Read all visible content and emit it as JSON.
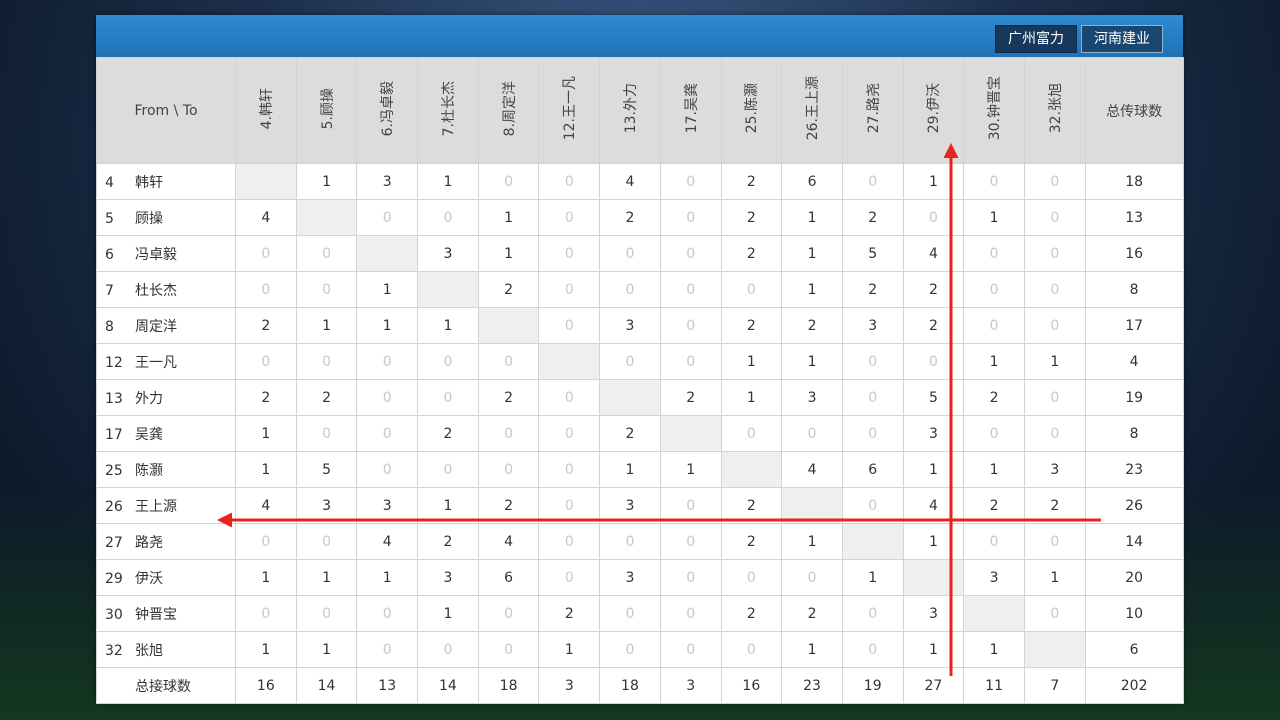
{
  "tabs": [
    "广州富力",
    "河南建业"
  ],
  "table": {
    "corner": "From \\ To",
    "columns": [
      "4.韩轩",
      "5.顾操",
      "6.冯卓毅",
      "7.杜长杰",
      "8.周定洋",
      "12.王一凡",
      "13.外力",
      "17.吴龚",
      "25.陈灏",
      "26.王上源",
      "27.路尧",
      "29.伊沃",
      "30.钟晋宝",
      "32.张旭"
    ],
    "total_header": "总传球数",
    "rows": [
      {
        "no": "4",
        "name": "韩轩",
        "cells": [
          null,
          1,
          3,
          1,
          0,
          0,
          4,
          0,
          2,
          6,
          0,
          1,
          0,
          0
        ],
        "total": 18
      },
      {
        "no": "5",
        "name": "顾操",
        "cells": [
          4,
          null,
          0,
          0,
          1,
          0,
          2,
          0,
          2,
          1,
          2,
          0,
          1,
          0
        ],
        "total": 13
      },
      {
        "no": "6",
        "name": "冯卓毅",
        "cells": [
          0,
          0,
          null,
          3,
          1,
          0,
          0,
          0,
          2,
          1,
          5,
          4,
          0,
          0
        ],
        "total": 16
      },
      {
        "no": "7",
        "name": "杜长杰",
        "cells": [
          0,
          0,
          1,
          null,
          2,
          0,
          0,
          0,
          0,
          1,
          2,
          2,
          0,
          0
        ],
        "total": 8
      },
      {
        "no": "8",
        "name": "周定洋",
        "cells": [
          2,
          1,
          1,
          1,
          null,
          0,
          3,
          0,
          2,
          2,
          3,
          2,
          0,
          0
        ],
        "total": 17
      },
      {
        "no": "12",
        "name": "王一凡",
        "cells": [
          0,
          0,
          0,
          0,
          0,
          null,
          0,
          0,
          1,
          1,
          0,
          0,
          1,
          1
        ],
        "total": 4
      },
      {
        "no": "13",
        "name": "外力",
        "cells": [
          2,
          2,
          0,
          0,
          2,
          0,
          null,
          2,
          1,
          3,
          0,
          5,
          2,
          0
        ],
        "total": 19
      },
      {
        "no": "17",
        "name": "吴龚",
        "cells": [
          1,
          0,
          0,
          2,
          0,
          0,
          2,
          null,
          0,
          0,
          0,
          3,
          0,
          0
        ],
        "total": 8
      },
      {
        "no": "25",
        "name": "陈灏",
        "cells": [
          1,
          5,
          0,
          0,
          0,
          0,
          1,
          1,
          null,
          4,
          6,
          1,
          1,
          3
        ],
        "total": 23
      },
      {
        "no": "26",
        "name": "王上源",
        "cells": [
          4,
          3,
          3,
          1,
          2,
          0,
          3,
          0,
          2,
          null,
          0,
          4,
          2,
          2
        ],
        "total": 26
      },
      {
        "no": "27",
        "name": "路尧",
        "cells": [
          0,
          0,
          4,
          2,
          4,
          0,
          0,
          0,
          2,
          1,
          null,
          1,
          0,
          0
        ],
        "total": 14
      },
      {
        "no": "29",
        "name": "伊沃",
        "cells": [
          1,
          1,
          1,
          3,
          6,
          0,
          3,
          0,
          0,
          0,
          1,
          null,
          3,
          1
        ],
        "total": 20
      },
      {
        "no": "30",
        "name": "钟晋宝",
        "cells": [
          0,
          0,
          0,
          1,
          0,
          2,
          0,
          0,
          2,
          2,
          0,
          3,
          null,
          0
        ],
        "total": 10
      },
      {
        "no": "32",
        "name": "张旭",
        "cells": [
          1,
          1,
          0,
          0,
          0,
          1,
          0,
          0,
          0,
          1,
          0,
          1,
          1,
          null
        ],
        "total": 6
      }
    ],
    "footer": {
      "label": "总接球数",
      "cells": [
        16,
        14,
        13,
        14,
        18,
        3,
        18,
        3,
        16,
        23,
        19,
        27,
        11,
        7
      ],
      "total": 202
    }
  }
}
